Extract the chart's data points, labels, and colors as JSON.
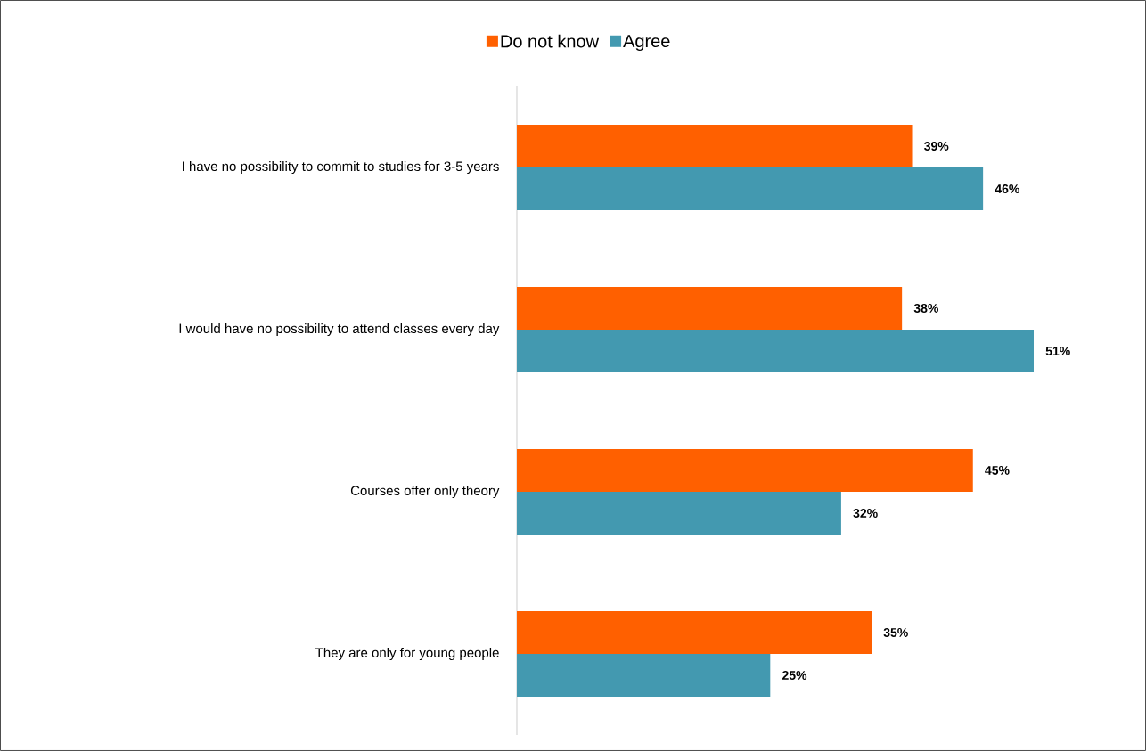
{
  "chart_data": {
    "type": "bar",
    "orientation": "horizontal",
    "legend": "top",
    "categories": [
      "I have no possibility to commit to studies for 3-5 years",
      "I would have no possibility to attend classes every day",
      "Courses offer only theory",
      "They are only for young people"
    ],
    "series": [
      {
        "name": "Do not know",
        "color": "#ff6000",
        "values": [
          39,
          38,
          45,
          35
        ],
        "value_labels": [
          "39%",
          "38%",
          "45%",
          "35%"
        ]
      },
      {
        "name": "Agree",
        "color": "#4399b0",
        "values": [
          46,
          51,
          32,
          25
        ],
        "value_labels": [
          "46%",
          "51%",
          "32%",
          "25%"
        ]
      }
    ]
  }
}
